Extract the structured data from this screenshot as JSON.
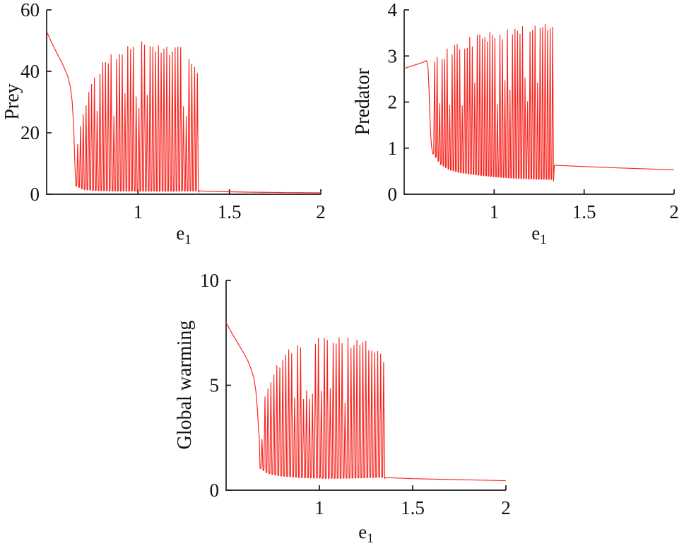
{
  "figure": {
    "background": "#ffffff",
    "axis_color": "#1a1a1a",
    "text_color": "#111111"
  },
  "chart_data": [
    {
      "type": "line",
      "name": "prey-bifurcation",
      "title": "",
      "ylabel": "Prey",
      "xlabel_base": "e",
      "xlabel_sub": "1",
      "xlim": [
        0.5,
        2
      ],
      "ylim": [
        0,
        60
      ],
      "xticks": [
        1,
        1.5,
        2
      ],
      "xtick_labels": [
        "1",
        "1.5",
        "2"
      ],
      "yticks": [
        0,
        20,
        40,
        60
      ],
      "ytick_labels": [
        "0",
        "20",
        "40",
        "60"
      ],
      "grid": false,
      "legend": false,
      "line_color": "#f8241e",
      "series": {
        "initial_branch": [
          [
            0.5,
            53
          ],
          [
            0.53,
            49
          ],
          [
            0.56,
            45.5
          ],
          [
            0.59,
            42
          ],
          [
            0.615,
            38.5
          ],
          [
            0.63,
            35
          ],
          [
            0.64,
            30
          ],
          [
            0.648,
            22
          ],
          [
            0.653,
            12
          ],
          [
            0.657,
            6.5
          ]
        ],
        "oscillation": {
          "x_start": 0.66,
          "x_end": 1.33,
          "cycles": 44,
          "upper_envelope": [
            [
              0.66,
              13
            ],
            [
              0.69,
              24
            ],
            [
              0.72,
              32
            ],
            [
              0.76,
              38
            ],
            [
              0.8,
              42
            ],
            [
              0.85,
              45.5
            ],
            [
              0.9,
              47.5
            ],
            [
              0.95,
              48.8
            ],
            [
              1.0,
              49.4
            ],
            [
              1.05,
              49.6
            ],
            [
              1.1,
              49.4
            ],
            [
              1.15,
              49
            ],
            [
              1.2,
              48.2
            ],
            [
              1.25,
              46.8
            ],
            [
              1.29,
              44.5
            ],
            [
              1.33,
              40.5
            ]
          ],
          "lower_envelope": [
            [
              0.66,
              2.5
            ],
            [
              0.7,
              1.2
            ],
            [
              0.75,
              0.8
            ],
            [
              0.85,
              0.5
            ],
            [
              1.0,
              0.4
            ],
            [
              1.2,
              0.4
            ],
            [
              1.33,
              0.6
            ]
          ]
        },
        "steady_branch": [
          [
            1.335,
            1.1
          ],
          [
            1.4,
            0.9
          ],
          [
            1.6,
            0.7
          ],
          [
            1.8,
            0.55
          ],
          [
            2.0,
            0.45
          ]
        ]
      }
    },
    {
      "type": "line",
      "name": "predator-bifurcation",
      "title": "",
      "ylabel": "Predator",
      "xlabel_base": "e",
      "xlabel_sub": "1",
      "xlim": [
        0.5,
        2
      ],
      "ylim": [
        0,
        4
      ],
      "xticks": [
        1,
        1.5,
        2
      ],
      "xtick_labels": [
        "1",
        "1.5",
        "2"
      ],
      "yticks": [
        0,
        1,
        2,
        3,
        4
      ],
      "ytick_labels": [
        "0",
        "1",
        "2",
        "3",
        "4"
      ],
      "grid": false,
      "legend": false,
      "line_color": "#f8241e",
      "series": {
        "initial_branch": [
          [
            0.5,
            2.73
          ],
          [
            0.54,
            2.78
          ],
          [
            0.58,
            2.83
          ],
          [
            0.61,
            2.87
          ],
          [
            0.625,
            2.9
          ],
          [
            0.633,
            2.72
          ],
          [
            0.638,
            2.3
          ],
          [
            0.643,
            1.7
          ],
          [
            0.648,
            1.25
          ],
          [
            0.653,
            1.0
          ],
          [
            0.658,
            0.92
          ]
        ],
        "oscillation": {
          "x_start": 0.66,
          "x_end": 1.33,
          "cycles": 48,
          "upper_envelope": [
            [
              0.66,
              2.95
            ],
            [
              0.7,
              3.05
            ],
            [
              0.75,
              3.18
            ],
            [
              0.8,
              3.28
            ],
            [
              0.85,
              3.36
            ],
            [
              0.9,
              3.42
            ],
            [
              0.95,
              3.48
            ],
            [
              1.0,
              3.52
            ],
            [
              1.05,
              3.55
            ],
            [
              1.1,
              3.58
            ],
            [
              1.15,
              3.6
            ],
            [
              1.2,
              3.62
            ],
            [
              1.25,
              3.63
            ],
            [
              1.3,
              3.64
            ],
            [
              1.33,
              3.64
            ]
          ],
          "lower_envelope": [
            [
              0.66,
              0.85
            ],
            [
              0.7,
              0.62
            ],
            [
              0.75,
              0.5
            ],
            [
              0.8,
              0.44
            ],
            [
              0.9,
              0.38
            ],
            [
              1.0,
              0.34
            ],
            [
              1.1,
              0.31
            ],
            [
              1.2,
              0.29
            ],
            [
              1.33,
              0.28
            ]
          ]
        },
        "steady_branch": [
          [
            1.335,
            0.63
          ],
          [
            1.5,
            0.6
          ],
          [
            1.7,
            0.57
          ],
          [
            2.0,
            0.53
          ]
        ]
      }
    },
    {
      "type": "line",
      "name": "global-warming-bifurcation",
      "title": "",
      "ylabel": "Global warming",
      "xlabel_base": "e",
      "xlabel_sub": "1",
      "xlim": [
        0.5,
        2
      ],
      "ylim": [
        0,
        10
      ],
      "xticks": [
        1,
        1.5,
        2
      ],
      "xtick_labels": [
        "1",
        "1.5",
        "2"
      ],
      "yticks": [
        0,
        5,
        10
      ],
      "ytick_labels": [
        "0",
        "5",
        "10"
      ],
      "grid": false,
      "legend": false,
      "line_color": "#f8241e",
      "series": {
        "initial_branch": [
          [
            0.5,
            8.0
          ],
          [
            0.53,
            7.5
          ],
          [
            0.56,
            7.05
          ],
          [
            0.59,
            6.6
          ],
          [
            0.615,
            6.2
          ],
          [
            0.635,
            5.75
          ],
          [
            0.65,
            5.3
          ],
          [
            0.66,
            4.7
          ],
          [
            0.668,
            3.8
          ],
          [
            0.674,
            2.9
          ],
          [
            0.678,
            2.45
          ]
        ],
        "oscillation": {
          "x_start": 0.682,
          "x_end": 1.35,
          "cycles": 42,
          "upper_envelope": [
            [
              0.682,
              3.4
            ],
            [
              0.71,
              4.6
            ],
            [
              0.74,
              5.4
            ],
            [
              0.78,
              6.1
            ],
            [
              0.82,
              6.55
            ],
            [
              0.87,
              6.9
            ],
            [
              0.92,
              7.1
            ],
            [
              0.98,
              7.25
            ],
            [
              1.05,
              7.3
            ],
            [
              1.12,
              7.28
            ],
            [
              1.18,
              7.2
            ],
            [
              1.24,
              7.05
            ],
            [
              1.3,
              6.8
            ],
            [
              1.35,
              6.2
            ]
          ],
          "lower_envelope": [
            [
              0.682,
              1.0
            ],
            [
              0.72,
              0.75
            ],
            [
              0.78,
              0.62
            ],
            [
              0.9,
              0.52
            ],
            [
              1.05,
              0.48
            ],
            [
              1.2,
              0.5
            ],
            [
              1.35,
              0.55
            ]
          ]
        },
        "steady_branch": [
          [
            1.355,
            0.6
          ],
          [
            1.5,
            0.55
          ],
          [
            1.75,
            0.5
          ],
          [
            2.0,
            0.45
          ]
        ]
      }
    }
  ]
}
